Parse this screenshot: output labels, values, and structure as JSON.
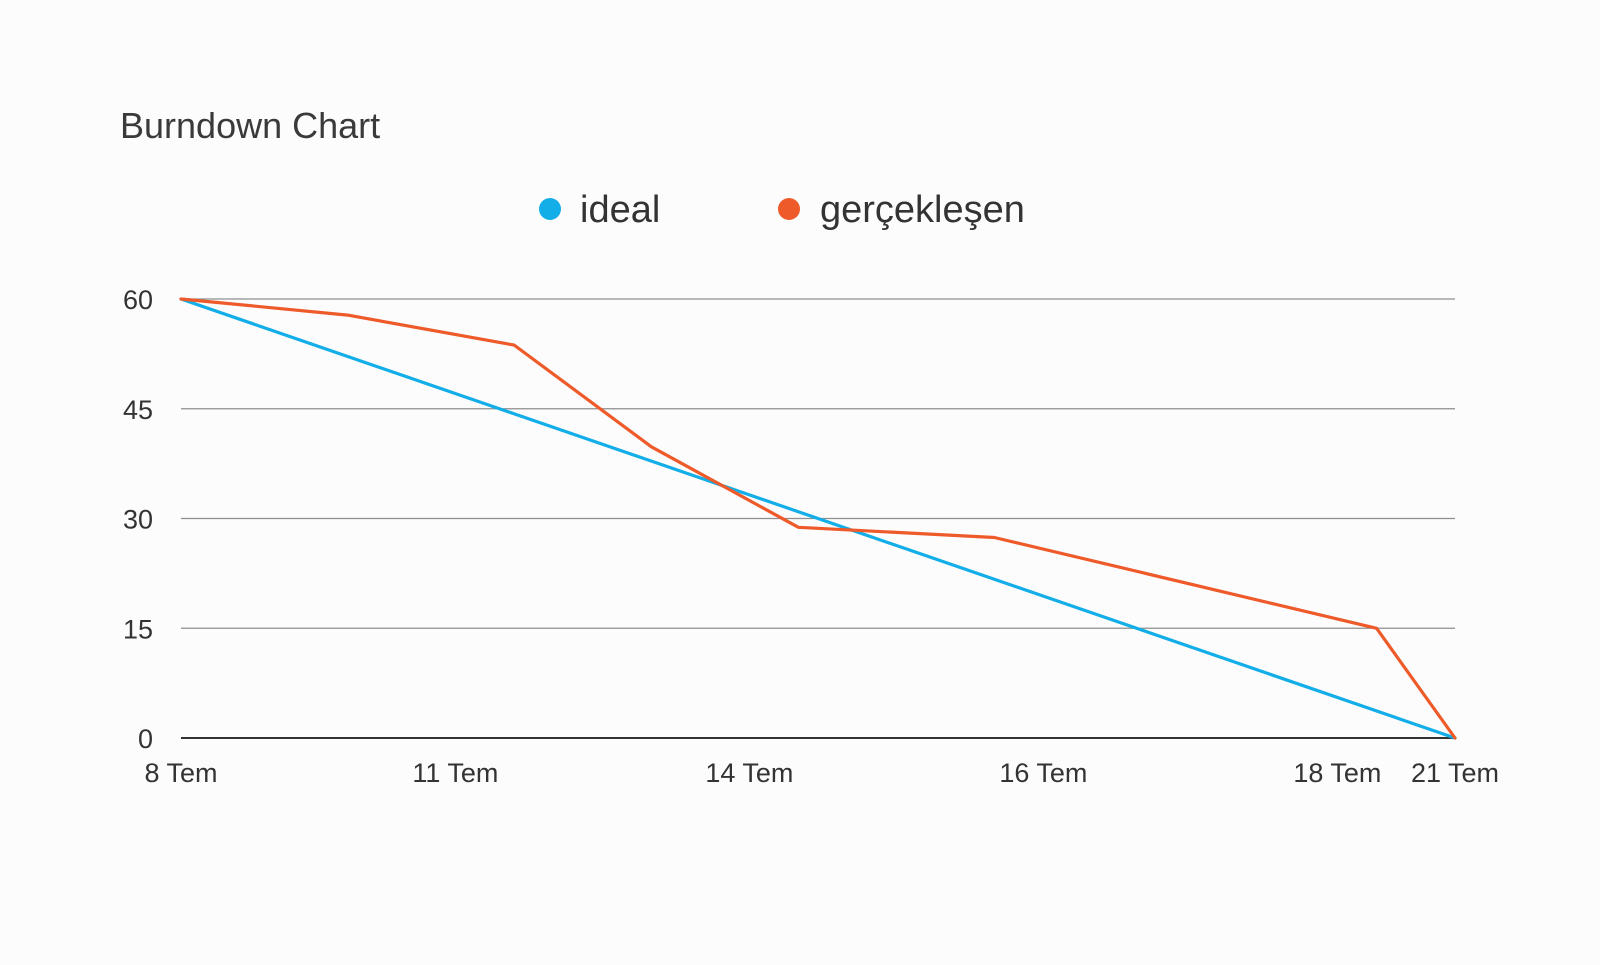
{
  "chart_data": {
    "type": "line",
    "title": "Burndown Chart",
    "xlabel": "",
    "ylabel": "",
    "ylim": [
      0,
      60
    ],
    "y_ticks": [
      0,
      15,
      30,
      45,
      60
    ],
    "x_tick_labels": [
      "8 Tem",
      "11 Tem",
      "14 Tem",
      "16 Tem",
      "18 Tem",
      "21 Tem"
    ],
    "x_ticks": [
      8,
      10.8,
      13.8,
      16.8,
      19.8,
      21
    ],
    "xlim": [
      8,
      21
    ],
    "grid": true,
    "legend_position": "top",
    "series": [
      {
        "name": "ideal",
        "color": "#13aee8",
        "points": [
          [
            8,
            60
          ],
          [
            21,
            0
          ]
        ]
      },
      {
        "name": "gerçekleşen",
        "color": "#ee5a29",
        "points": [
          [
            8,
            60
          ],
          [
            9.7,
            57.8
          ],
          [
            11.4,
            53.7
          ],
          [
            12.8,
            39.8
          ],
          [
            14.3,
            28.8
          ],
          [
            16.3,
            27.4
          ],
          [
            20.2,
            15
          ],
          [
            21,
            0
          ]
        ]
      }
    ]
  }
}
